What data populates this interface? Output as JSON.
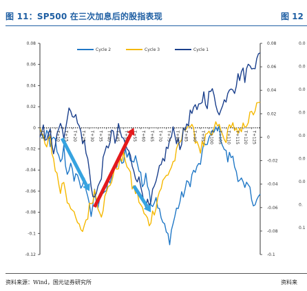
{
  "figure": {
    "title": "图 11：SP500 在三次加息后的股指表现",
    "next_title_fragment": "图 12",
    "source": "资料来源：Wind，国元证券研究所",
    "next_source_fragment": "资料来"
  },
  "right_panel_fragment": {
    "ticks": [
      "0.0",
      "0.0",
      "0.0",
      "0.0",
      "0.0",
      "0.0",
      "0.0",
      "0.",
      "0.1"
    ]
  },
  "chart_data": {
    "type": "line",
    "title": "",
    "xlabel": "",
    "ylabel": "",
    "ylim": [
      -0.12,
      0.08
    ],
    "y_ticks": [
      0.08,
      0.06,
      0.04,
      0.02,
      0,
      -0.02,
      -0.04,
      -0.06,
      -0.08,
      -0.1,
      -0.12
    ],
    "y_tick_labels": [
      "0.08",
      "0.06",
      "0.04",
      "0.02",
      "0",
      "-0.02",
      "-0.04",
      "-0.06",
      "-0.08",
      "-0.1",
      "-0.12"
    ],
    "y2_lim": [
      -0.1,
      0.08
    ],
    "y2_ticks": [
      0.08,
      0.06,
      0.04,
      0.02,
      0,
      -0.02,
      -0.04,
      -0.06,
      -0.08,
      -0.1
    ],
    "y2_tick_labels": [
      "0.08",
      "0.06",
      "0.04",
      "0.02",
      "0",
      "-0.02",
      "-0.04",
      "-0.06",
      "-0.08",
      "-0.1"
    ],
    "x_ticks": [
      "T+1",
      "T+5",
      "T+10",
      "T+15",
      "T+20",
      "T+25",
      "T+30",
      "T+35",
      "T+40",
      "T+45",
      "T+50",
      "T+55",
      "T+60",
      "T+65",
      "T+70",
      "T+75",
      "T+80",
      "T+85",
      "T+90",
      "T+95",
      "T+100",
      "T+105",
      "T+110",
      "T+115",
      "T+120",
      "T+125"
    ],
    "x_count": 130,
    "legend_position": "top-center",
    "series": [
      {
        "name": "Cycle 2",
        "color": "#1f77c6",
        "axis": "left",
        "anchors": [
          [
            1,
            0
          ],
          [
            3,
            -0.012
          ],
          [
            5,
            -0.004
          ],
          [
            7,
            -0.02
          ],
          [
            9,
            -0.005
          ],
          [
            11,
            -0.025
          ],
          [
            13,
            -0.035
          ],
          [
            15,
            -0.02
          ],
          [
            17,
            -0.045
          ],
          [
            19,
            -0.03
          ],
          [
            21,
            -0.055
          ],
          [
            23,
            -0.04
          ],
          [
            25,
            -0.06
          ],
          [
            27,
            -0.045
          ],
          [
            29,
            -0.07
          ],
          [
            31,
            -0.083
          ],
          [
            33,
            -0.062
          ],
          [
            35,
            -0.072
          ],
          [
            37,
            -0.058
          ],
          [
            39,
            -0.066
          ],
          [
            41,
            -0.052
          ],
          [
            43,
            -0.046
          ],
          [
            45,
            -0.04
          ],
          [
            47,
            -0.03
          ],
          [
            49,
            -0.036
          ],
          [
            51,
            -0.02
          ],
          [
            53,
            -0.026
          ],
          [
            55,
            -0.034
          ],
          [
            57,
            -0.025
          ],
          [
            59,
            -0.04
          ],
          [
            61,
            -0.055
          ],
          [
            63,
            -0.04
          ],
          [
            65,
            -0.062
          ],
          [
            67,
            -0.072
          ],
          [
            69,
            -0.065
          ],
          [
            71,
            -0.08
          ],
          [
            73,
            -0.09
          ],
          [
            75,
            -0.1
          ],
          [
            77,
            -0.105
          ],
          [
            79,
            -0.09
          ],
          [
            81,
            -0.078
          ],
          [
            83,
            -0.07
          ],
          [
            85,
            -0.062
          ],
          [
            87,
            -0.055
          ],
          [
            89,
            -0.05
          ],
          [
            91,
            -0.042
          ],
          [
            93,
            -0.04
          ],
          [
            95,
            -0.032
          ],
          [
            97,
            -0.02
          ],
          [
            99,
            -0.012
          ],
          [
            101,
            -0.008
          ],
          [
            103,
            -0.005
          ],
          [
            105,
            0.002
          ],
          [
            107,
            -0.008
          ],
          [
            109,
            -0.02
          ],
          [
            111,
            -0.03
          ],
          [
            113,
            -0.025
          ],
          [
            115,
            -0.036
          ],
          [
            117,
            -0.045
          ],
          [
            119,
            -0.05
          ],
          [
            121,
            -0.06
          ],
          [
            123,
            -0.055
          ],
          [
            125,
            -0.066
          ],
          [
            127,
            -0.07
          ],
          [
            130,
            -0.065
          ]
        ]
      },
      {
        "name": "Cycle 3",
        "color": "#f5b800",
        "axis": "left",
        "anchors": [
          [
            1,
            0
          ],
          [
            3,
            -0.01
          ],
          [
            5,
            -0.02
          ],
          [
            7,
            -0.01
          ],
          [
            9,
            -0.03
          ],
          [
            11,
            -0.045
          ],
          [
            13,
            -0.06
          ],
          [
            15,
            -0.05
          ],
          [
            17,
            -0.068
          ],
          [
            19,
            -0.072
          ],
          [
            21,
            -0.085
          ],
          [
            23,
            -0.09
          ],
          [
            25,
            -0.1
          ],
          [
            27,
            -0.092
          ],
          [
            29,
            -0.082
          ],
          [
            31,
            -0.07
          ],
          [
            33,
            -0.06
          ],
          [
            35,
            -0.072
          ],
          [
            37,
            -0.08
          ],
          [
            39,
            -0.068
          ],
          [
            41,
            -0.058
          ],
          [
            43,
            -0.048
          ],
          [
            45,
            -0.04
          ],
          [
            47,
            -0.034
          ],
          [
            49,
            -0.03
          ],
          [
            51,
            -0.028
          ],
          [
            53,
            -0.04
          ],
          [
            55,
            -0.055
          ],
          [
            57,
            -0.06
          ],
          [
            59,
            -0.068
          ],
          [
            61,
            -0.078
          ],
          [
            63,
            -0.085
          ],
          [
            65,
            -0.09
          ],
          [
            67,
            -0.082
          ],
          [
            69,
            -0.072
          ],
          [
            71,
            -0.06
          ],
          [
            73,
            -0.052
          ],
          [
            75,
            -0.046
          ],
          [
            77,
            -0.04
          ],
          [
            79,
            -0.033
          ],
          [
            81,
            -0.025
          ],
          [
            83,
            -0.015
          ],
          [
            85,
            -0.005
          ],
          [
            87,
            0.005
          ],
          [
            89,
            0.002
          ],
          [
            91,
            -0.006
          ],
          [
            93,
            -0.012
          ],
          [
            95,
            -0.02
          ],
          [
            97,
            -0.015
          ],
          [
            99,
            -0.008
          ],
          [
            101,
            -0.01
          ],
          [
            103,
            -0.002
          ],
          [
            105,
            0.004
          ],
          [
            107,
            -0.004
          ],
          [
            109,
            -0.012
          ],
          [
            111,
            -0.006
          ],
          [
            113,
            0.006
          ],
          [
            115,
            0.0
          ],
          [
            117,
            -0.008
          ],
          [
            119,
            -0.004
          ],
          [
            121,
            0.004
          ],
          [
            123,
            0.008
          ],
          [
            125,
            0.012
          ],
          [
            127,
            0.018
          ],
          [
            130,
            0.022
          ]
        ]
      },
      {
        "name": "Cycle 1",
        "color": "#1a3f8c",
        "axis": "right",
        "anchors": [
          [
            1,
            0
          ],
          [
            3,
            0.008
          ],
          [
            5,
            -0.006
          ],
          [
            7,
            0.004
          ],
          [
            9,
            -0.01
          ],
          [
            11,
            0.006
          ],
          [
            13,
            0.012
          ],
          [
            15,
            0.004
          ],
          [
            17,
            0.014
          ],
          [
            19,
            0.026
          ],
          [
            21,
            0.02
          ],
          [
            23,
            0.012
          ],
          [
            25,
            0.004
          ],
          [
            27,
            -0.006
          ],
          [
            29,
            -0.02
          ],
          [
            31,
            -0.04
          ],
          [
            33,
            -0.052
          ],
          [
            35,
            -0.045
          ],
          [
            37,
            -0.03
          ],
          [
            39,
            -0.016
          ],
          [
            41,
            -0.006
          ],
          [
            43,
            0.004
          ],
          [
            45,
            -0.004
          ],
          [
            47,
            0.006
          ],
          [
            49,
            0.0
          ],
          [
            51,
            -0.006
          ],
          [
            53,
            -0.014
          ],
          [
            55,
            -0.022
          ],
          [
            57,
            -0.03
          ],
          [
            59,
            -0.038
          ],
          [
            61,
            -0.046
          ],
          [
            63,
            -0.055
          ],
          [
            65,
            -0.062
          ],
          [
            67,
            -0.05
          ],
          [
            69,
            -0.04
          ],
          [
            71,
            -0.03
          ],
          [
            73,
            -0.02
          ],
          [
            75,
            -0.012
          ],
          [
            77,
            -0.004
          ],
          [
            79,
            0.004
          ],
          [
            81,
            0.0
          ],
          [
            83,
            -0.006
          ],
          [
            85,
            0.002
          ],
          [
            87,
            0.012
          ],
          [
            89,
            0.018
          ],
          [
            91,
            0.024
          ],
          [
            93,
            0.02
          ],
          [
            95,
            0.03
          ],
          [
            97,
            0.036
          ],
          [
            99,
            0.03
          ],
          [
            101,
            0.04
          ],
          [
            103,
            0.034
          ],
          [
            105,
            0.026
          ],
          [
            107,
            0.022
          ],
          [
            109,
            0.03
          ],
          [
            111,
            0.04
          ],
          [
            113,
            0.046
          ],
          [
            115,
            0.042
          ],
          [
            117,
            0.05
          ],
          [
            119,
            0.056
          ],
          [
            121,
            0.052
          ],
          [
            123,
            0.06
          ],
          [
            125,
            0.064
          ],
          [
            127,
            0.062
          ],
          [
            130,
            0.07
          ]
        ]
      }
    ],
    "annotations": [
      {
        "type": "arrow",
        "color": "#36a3e0",
        "from": [
          14,
          -0.01
        ],
        "to": [
          30,
          -0.06
        ],
        "axis": "left"
      },
      {
        "type": "arrow",
        "color": "#e41a1c",
        "from": [
          33,
          -0.075
        ],
        "to": [
          56,
          0.0
        ],
        "axis": "left"
      },
      {
        "type": "arrow",
        "color": "#36a3e0",
        "from": [
          56,
          -0.055
        ],
        "to": [
          66,
          -0.08
        ],
        "axis": "left"
      }
    ]
  }
}
